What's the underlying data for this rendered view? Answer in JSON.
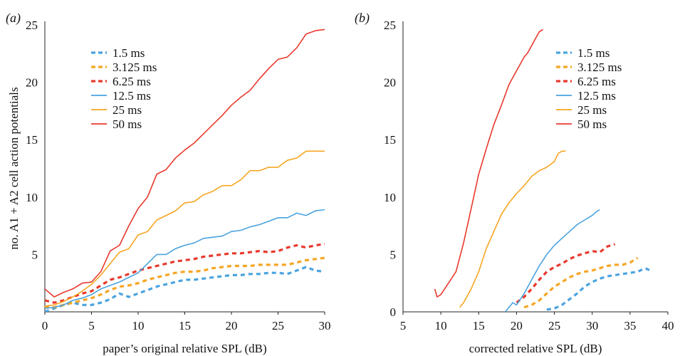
{
  "chart_data": [
    {
      "type": "line",
      "panel_label": "(a)",
      "xlabel": "paper’s original relative SPL (dB)",
      "ylabel": "no. A1 + A2 cell action potentials",
      "xlim": [
        0,
        30
      ],
      "ylim": [
        0,
        25
      ],
      "xticks": [
        0,
        5,
        10,
        15,
        20,
        25,
        30
      ],
      "yticks": [
        5,
        10,
        15,
        20,
        25
      ],
      "xtick_labels": [
        "0",
        "5",
        "10",
        "15",
        "20",
        "25",
        "30"
      ],
      "ytick_labels": [
        "5",
        "10",
        "15",
        "20",
        "25"
      ],
      "grid": false,
      "legend_position": "top-left",
      "series": [
        {
          "name": "1.5 ms",
          "color": "#4aa3df",
          "dashed": true,
          "x": [
            0,
            1,
            2,
            3,
            4,
            5,
            6,
            7,
            8,
            9,
            10,
            11,
            12,
            13,
            14,
            15,
            16,
            17,
            18,
            19,
            20,
            21,
            22,
            23,
            24,
            25,
            26,
            27,
            28,
            29,
            30
          ],
          "y": [
            0,
            0.3,
            0.6,
            0.8,
            0.6,
            0.6,
            0.8,
            1.1,
            1.6,
            1.3,
            1.6,
            1.9,
            2.2,
            2.4,
            2.6,
            2.8,
            2.8,
            2.9,
            3.0,
            3.1,
            3.2,
            3.2,
            3.3,
            3.3,
            3.4,
            3.4,
            3.3,
            3.6,
            3.9,
            3.6,
            3.5
          ]
        },
        {
          "name": "3.125 ms",
          "color": "#f5a623",
          "dashed": true,
          "x": [
            0,
            1,
            2,
            3,
            4,
            5,
            6,
            7,
            8,
            9,
            10,
            11,
            12,
            13,
            14,
            15,
            16,
            17,
            18,
            19,
            20,
            21,
            22,
            23,
            24,
            25,
            26,
            27,
            28,
            29,
            30
          ],
          "y": [
            0.4,
            0.4,
            0.6,
            0.8,
            1.0,
            1.2,
            1.5,
            1.9,
            2.2,
            2.3,
            2.5,
            2.8,
            3.0,
            3.2,
            3.4,
            3.5,
            3.5,
            3.6,
            3.8,
            3.9,
            4.0,
            4.0,
            4.0,
            4.1,
            4.1,
            4.1,
            4.1,
            4.3,
            4.5,
            4.6,
            4.7
          ]
        },
        {
          "name": "6.25 ms",
          "color": "#e8392e",
          "dashed": true,
          "x": [
            0,
            1,
            2,
            3,
            4,
            5,
            6,
            7,
            8,
            9,
            10,
            11,
            12,
            13,
            14,
            15,
            16,
            17,
            18,
            19,
            20,
            21,
            22,
            23,
            24,
            25,
            26,
            27,
            28,
            29,
            30
          ],
          "y": [
            1.0,
            0.8,
            1.0,
            1.3,
            1.6,
            1.8,
            2.3,
            2.8,
            3.0,
            3.3,
            3.6,
            3.8,
            4.0,
            4.2,
            4.4,
            4.5,
            4.6,
            4.8,
            4.9,
            5.0,
            5.1,
            5.1,
            5.2,
            5.3,
            5.2,
            5.3,
            5.6,
            5.8,
            5.6,
            5.8,
            5.9
          ]
        },
        {
          "name": "12.5 ms",
          "color": "#4aa3df",
          "dashed": false,
          "x": [
            0,
            1,
            2,
            3,
            4,
            5,
            6,
            7,
            8,
            9,
            10,
            11,
            12,
            13,
            14,
            15,
            16,
            17,
            18,
            19,
            20,
            21,
            22,
            23,
            24,
            25,
            26,
            27,
            28,
            29,
            30
          ],
          "y": [
            0.3,
            0.4,
            0.6,
            1.0,
            1.2,
            1.5,
            2.0,
            2.3,
            2.6,
            3.0,
            3.4,
            4.2,
            5.0,
            5.0,
            5.5,
            5.8,
            6.0,
            6.4,
            6.5,
            6.6,
            7.0,
            7.1,
            7.4,
            7.6,
            7.9,
            8.2,
            8.2,
            8.6,
            8.4,
            8.8,
            8.9
          ]
        },
        {
          "name": "25 ms",
          "color": "#f5a623",
          "dashed": false,
          "x": [
            0,
            1,
            2,
            3,
            4,
            5,
            6,
            7,
            8,
            9,
            10,
            11,
            12,
            13,
            14,
            15,
            16,
            17,
            18,
            19,
            20,
            21,
            22,
            23,
            24,
            25,
            26,
            27,
            28,
            29,
            30
          ],
          "y": [
            0.5,
            0.6,
            0.9,
            1.3,
            1.8,
            2.4,
            3.2,
            4.2,
            5.2,
            5.5,
            6.7,
            7.0,
            8.0,
            8.4,
            8.8,
            9.5,
            9.6,
            10.2,
            10.5,
            11.0,
            11.0,
            11.5,
            12.3,
            12.3,
            12.6,
            12.6,
            13.2,
            13.4,
            14.0,
            14.0,
            14.0
          ]
        },
        {
          "name": "50 ms",
          "color": "#e8392e",
          "dashed": false,
          "x": [
            0,
            1,
            2,
            3,
            4,
            5,
            6,
            7,
            8,
            9,
            10,
            11,
            12,
            13,
            14,
            15,
            16,
            17,
            18,
            19,
            20,
            21,
            22,
            23,
            24,
            25,
            26,
            27,
            28,
            29,
            30
          ],
          "y": [
            2.0,
            1.3,
            1.7,
            2.0,
            2.5,
            2.6,
            3.5,
            5.3,
            5.8,
            7.5,
            9.0,
            10.0,
            12.0,
            12.4,
            13.4,
            14.1,
            14.7,
            15.5,
            16.3,
            17.1,
            18.0,
            18.7,
            19.3,
            20.3,
            21.2,
            22.0,
            22.2,
            23.0,
            24.2,
            24.5,
            24.6
          ]
        }
      ]
    },
    {
      "type": "line",
      "panel_label": "(b)",
      "xlabel": "corrected relative SPL (dB)",
      "ylabel": "",
      "xlim": [
        5,
        40
      ],
      "ylim": [
        0,
        25
      ],
      "xticks": [
        5,
        10,
        15,
        20,
        25,
        30,
        35,
        40
      ],
      "yticks": [
        0,
        5,
        10,
        15,
        20,
        25
      ],
      "xtick_labels": [
        "5",
        "10",
        "15",
        "20",
        "25",
        "30",
        "35",
        "40"
      ],
      "ytick_labels": [
        "0",
        "5",
        "10",
        "15",
        "20",
        "25"
      ],
      "grid": false,
      "legend_position": "top-right",
      "series": [
        {
          "name": "1.5 ms",
          "color": "#4aa3df",
          "dashed": true,
          "x": [
            24,
            25,
            26,
            27,
            28,
            29,
            30,
            31,
            32,
            33,
            34,
            35,
            36,
            37,
            38
          ],
          "y": [
            0.2,
            0.3,
            0.6,
            1.1,
            1.6,
            2.2,
            2.6,
            2.9,
            3.1,
            3.2,
            3.3,
            3.4,
            3.5,
            3.8,
            3.5
          ]
        },
        {
          "name": "3.125 ms",
          "color": "#f5a623",
          "dashed": true,
          "x": [
            21,
            22,
            23,
            24,
            25,
            26,
            27,
            28,
            29,
            30,
            31,
            32,
            33,
            34,
            35,
            36
          ],
          "y": [
            0.4,
            0.6,
            1.0,
            1.6,
            2.2,
            2.6,
            3.0,
            3.3,
            3.5,
            3.6,
            3.8,
            4.0,
            4.1,
            4.1,
            4.3,
            4.7
          ]
        },
        {
          "name": "6.25 ms",
          "color": "#e8392e",
          "dashed": true,
          "x": [
            20,
            21,
            22,
            23,
            24,
            25,
            26,
            27,
            28,
            29,
            30,
            31,
            32,
            33
          ],
          "y": [
            0.8,
            1.3,
            2.0,
            2.8,
            3.5,
            3.9,
            4.2,
            4.6,
            4.9,
            5.1,
            5.3,
            5.2,
            5.7,
            5.9
          ]
        },
        {
          "name": "12.5 ms",
          "color": "#4aa3df",
          "dashed": false,
          "x": [
            18.5,
            19,
            19.5,
            20,
            21,
            22,
            23,
            24,
            25,
            26,
            27,
            28,
            29,
            29.5,
            30,
            30.5,
            31
          ],
          "y": [
            0,
            0.4,
            0.8,
            0.6,
            1.6,
            2.8,
            4.0,
            5.0,
            5.8,
            6.4,
            7.0,
            7.6,
            8.0,
            8.2,
            8.4,
            8.7,
            8.9
          ]
        },
        {
          "name": "25 ms",
          "color": "#f5a623",
          "dashed": false,
          "x": [
            12.5,
            13,
            14,
            15,
            16,
            17,
            18,
            19,
            20,
            21,
            22,
            23,
            24,
            25,
            25.5,
            26,
            26.5
          ],
          "y": [
            0.4,
            0.8,
            2.0,
            3.5,
            5.5,
            7.0,
            8.5,
            9.5,
            10.3,
            11.0,
            11.8,
            12.3,
            12.6,
            13.1,
            13.8,
            14.0,
            14.0
          ]
        },
        {
          "name": "50 ms",
          "color": "#e8392e",
          "dashed": false,
          "x": [
            9.2,
            9.5,
            10,
            11,
            12,
            13,
            14,
            15,
            16,
            17,
            18,
            19,
            20,
            21,
            21.5,
            22,
            22.5,
            23,
            23.5
          ],
          "y": [
            2.0,
            1.3,
            1.5,
            2.5,
            3.5,
            6.0,
            9.0,
            12.0,
            14.2,
            16.3,
            18.0,
            19.8,
            21.0,
            22.2,
            22.6,
            23.2,
            23.8,
            24.4,
            24.6
          ]
        }
      ]
    }
  ]
}
